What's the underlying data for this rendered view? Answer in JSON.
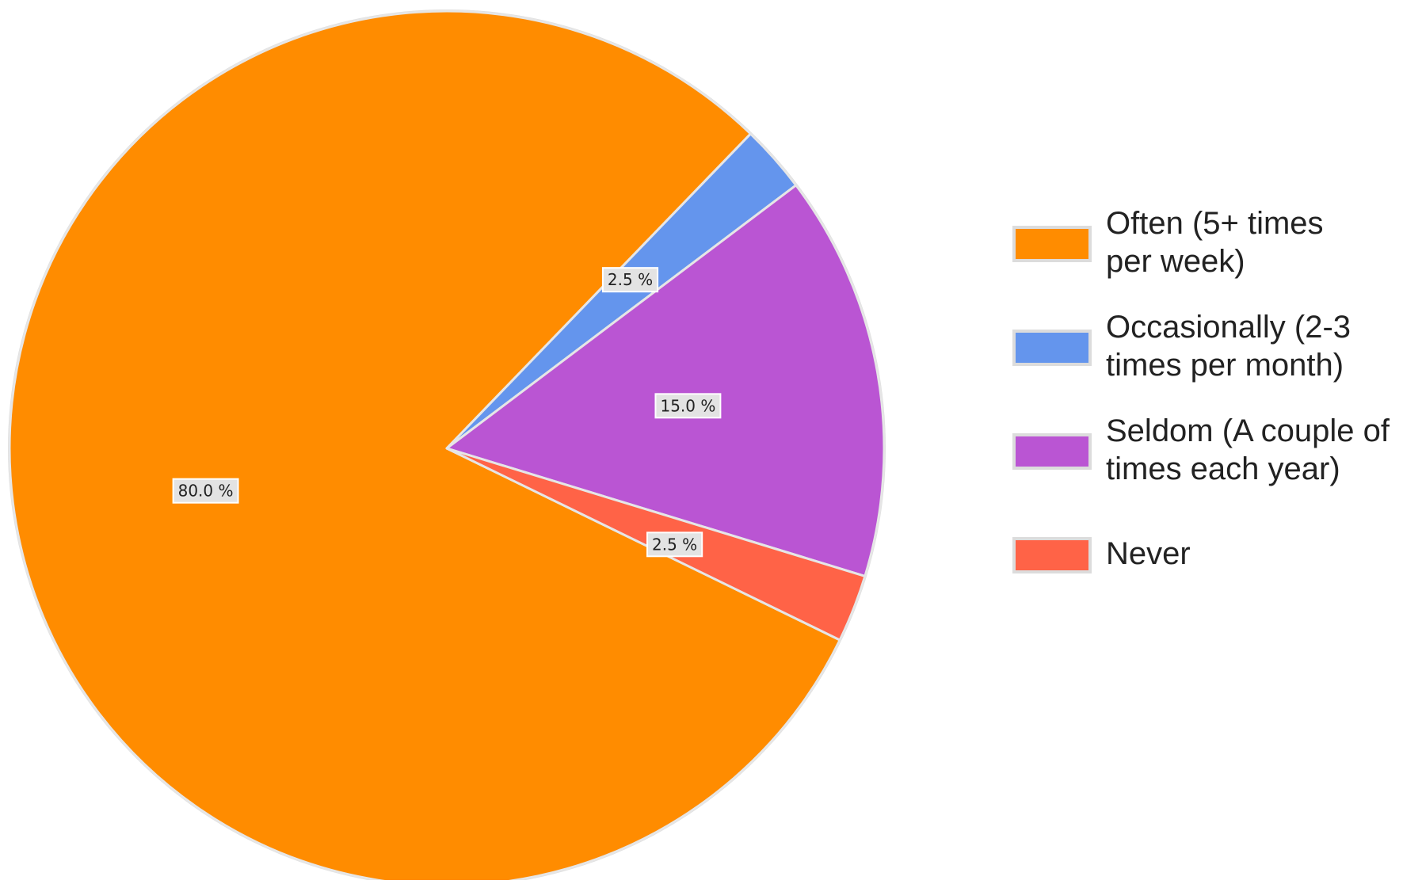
{
  "chart_data": {
    "type": "pie",
    "title": "",
    "slices": [
      {
        "label": "Often (5+ times per week)",
        "value": 80.0,
        "display": "80.0 %",
        "color": "#FF8C00",
        "legend_lines": [
          "Often (5+ times",
          "per week)"
        ]
      },
      {
        "label": "Occasionally (2-3 times per month)",
        "value": 2.5,
        "display": "2.5 %",
        "color": "#6495ED",
        "legend_lines": [
          "Occasionally (2-3",
          "times per month)"
        ]
      },
      {
        "label": "Seldom (A couple of times each year)",
        "value": 15.0,
        "display": "15.0 %",
        "color": "#BA55D3",
        "legend_lines": [
          "Seldom (A couple of",
          "times each year)"
        ]
      },
      {
        "label": "Never",
        "value": 2.5,
        "display": "2.5 %",
        "color": "#FF6347",
        "legend_lines": [
          "Never"
        ]
      }
    ],
    "legend": {
      "position": "right"
    },
    "start_direction": "clockwise from 12 o'clock"
  }
}
